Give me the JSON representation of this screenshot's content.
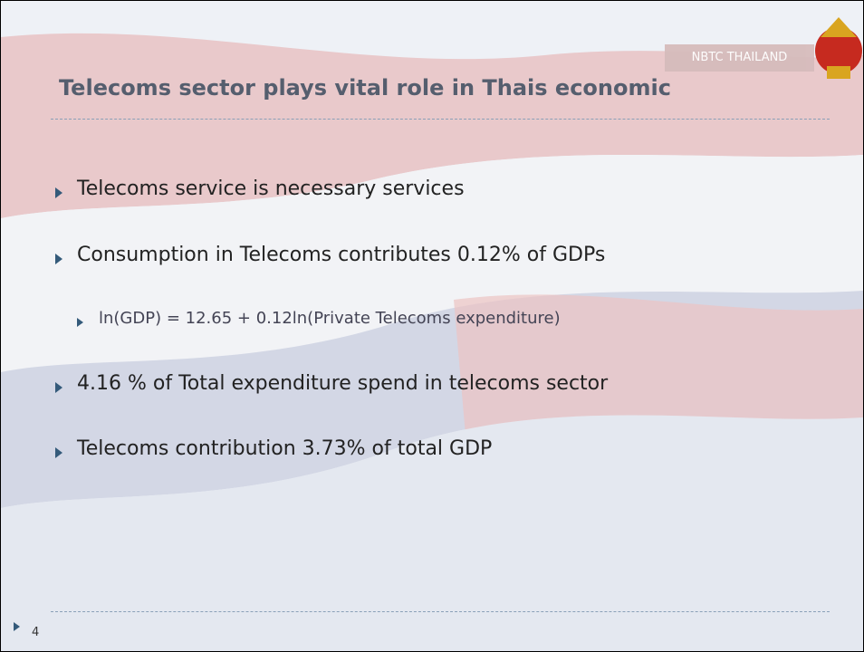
{
  "header": {
    "tag": "NBTC THAILAND",
    "title": "Telecoms sector plays vital role in Thais economic"
  },
  "bullets": [
    {
      "text": "Telecoms service is necessary services",
      "level": 1
    },
    {
      "text": "Consumption in Telecoms contributes 0.12% of GDPs",
      "level": 1
    },
    {
      "text": "ln(GDP) = 12.65 + 0.12ln(Private Telecoms expenditure)",
      "level": 2
    },
    {
      "text": "4.16 % of Total expenditure spend in telecoms sector",
      "level": 1
    },
    {
      "text": "Telecoms contribution 3.73% of total GDP",
      "level": 1
    }
  ],
  "footer": {
    "page": "4"
  }
}
